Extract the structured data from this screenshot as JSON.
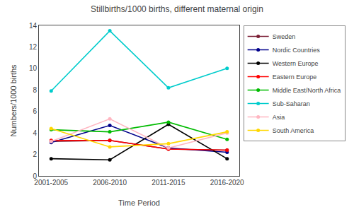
{
  "chart_data": {
    "type": "line",
    "title": "Stillbirths/1000 births, different maternal origin",
    "x_label": "Time Period",
    "y_label": "Numbers/1000 births",
    "categories": [
      "2001-2005",
      "2006-2010",
      "2011-2015",
      "2016-2020"
    ],
    "series": [
      {
        "name": "Sweden",
        "color": "#7B1F35",
        "values": [
          3.2,
          3.3,
          2.5,
          2.4
        ]
      },
      {
        "name": "Nordic Countries",
        "color": "#00008B",
        "values": [
          3.1,
          4.7,
          2.6,
          2.2
        ]
      },
      {
        "name": "Western Europe",
        "color": "#000000",
        "values": [
          1.6,
          1.5,
          4.8,
          1.6
        ]
      },
      {
        "name": "Eastern Europe",
        "color": "#FF0000",
        "values": [
          3.3,
          3.3,
          2.5,
          2.4
        ]
      },
      {
        "name": "Middle East/North Africa",
        "color": "#00BB00",
        "values": [
          4.3,
          4.1,
          5.0,
          3.4
        ]
      },
      {
        "name": "Sub-Saharan",
        "color": "#00CCCC",
        "values": [
          7.9,
          13.5,
          8.2,
          10.0
        ]
      },
      {
        "name": "Asia",
        "color": "#FFB6C1",
        "values": [
          3.2,
          5.3,
          2.6,
          4.0
        ]
      },
      {
        "name": "South America",
        "color": "#FFD700",
        "values": [
          4.4,
          2.7,
          3.0,
          4.1
        ]
      }
    ],
    "ylim": [
      0,
      14
    ],
    "yticks": [
      0,
      2,
      4,
      6,
      8,
      10,
      12,
      14
    ],
    "marker": "circle",
    "line_style": "solid",
    "grid": false,
    "legend": "upper right"
  }
}
